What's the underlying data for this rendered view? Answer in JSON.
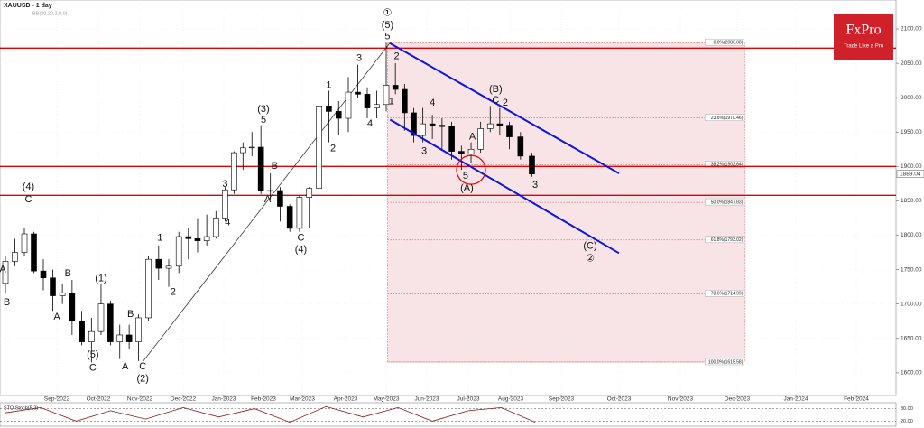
{
  "chart_data": {
    "type": "candlestick",
    "title": "XAUUSD - 1 day",
    "indicator": "BB(20,20,2,0,0)",
    "logo": {
      "brand": "FxPro",
      "tagline": "Trade Like a Pro"
    },
    "x": [
      "2022-07-25",
      "2022-08-01",
      "2022-08-08",
      "2022-08-15",
      "2022-08-22",
      "2022-08-29",
      "2022-09-05",
      "2022-09-12",
      "2022-09-19",
      "2022-09-26",
      "2022-10-03",
      "2022-10-10",
      "2022-10-17",
      "2022-10-24",
      "2022-10-31",
      "2022-11-07",
      "2022-11-14",
      "2022-11-21",
      "2022-11-28",
      "2022-12-05",
      "2022-12-12",
      "2022-12-19",
      "2022-12-26",
      "2023-01-02",
      "2023-01-09",
      "2023-01-16",
      "2023-01-23",
      "2023-01-30",
      "2023-02-06",
      "2023-02-13",
      "2023-02-20",
      "2023-02-27",
      "2023-03-06",
      "2023-03-13",
      "2023-03-20",
      "2023-03-27",
      "2023-04-03",
      "2023-04-10",
      "2023-04-17",
      "2023-04-24",
      "2023-05-01",
      "2023-05-08",
      "2023-05-15",
      "2023-05-22",
      "2023-05-29",
      "2023-06-05",
      "2023-06-12",
      "2023-06-19",
      "2023-06-26",
      "2023-07-03",
      "2023-07-10",
      "2023-07-17",
      "2023-07-24",
      "2023-07-31",
      "2023-08-07",
      "2023-08-14"
    ],
    "open": [
      1730,
      1762,
      1775,
      1802,
      1748,
      1738,
      1712,
      1716,
      1675,
      1645,
      1660,
      1700,
      1645,
      1655,
      1645,
      1680,
      1765,
      1752,
      1755,
      1798,
      1795,
      1792,
      1798,
      1825,
      1866,
      1920,
      1927,
      1928,
      1865,
      1865,
      1842,
      1810,
      1855,
      1868,
      1988,
      1980,
      1970,
      2008,
      2005,
      1985,
      1990,
      2018,
      2012,
      1978,
      1945,
      1962,
      1960,
      1958,
      1922,
      1918,
      1925,
      1955,
      1962,
      1960,
      1943,
      1915
    ],
    "high": [
      1770,
      1795,
      1810,
      1805,
      1765,
      1750,
      1730,
      1735,
      1690,
      1680,
      1730,
      1705,
      1670,
      1670,
      1685,
      1770,
      1785,
      1765,
      1805,
      1810,
      1825,
      1830,
      1835,
      1870,
      1922,
      1935,
      1950,
      1960,
      1890,
      1870,
      1845,
      1858,
      1870,
      1990,
      2010,
      1995,
      2030,
      2048,
      2015,
      2010,
      2080,
      2050,
      2020,
      1985,
      1985,
      1975,
      1970,
      1965,
      1930,
      1935,
      1965,
      1988,
      1985,
      1965,
      1950,
      1920
    ],
    "low": [
      1715,
      1755,
      1770,
      1745,
      1720,
      1690,
      1700,
      1655,
      1640,
      1615,
      1655,
      1640,
      1620,
      1635,
      1617,
      1675,
      1735,
      1725,
      1745,
      1765,
      1775,
      1785,
      1795,
      1820,
      1860,
      1895,
      1915,
      1860,
      1852,
      1820,
      1805,
      1805,
      1810,
      1865,
      1935,
      1945,
      1950,
      2000,
      1970,
      1970,
      1980,
      2005,
      1952,
      1935,
      1935,
      1940,
      1925,
      1910,
      1895,
      1905,
      1920,
      1950,
      1945,
      1925,
      1910,
      1885
    ],
    "close": [
      1762,
      1775,
      1802,
      1748,
      1738,
      1712,
      1716,
      1675,
      1645,
      1660,
      1700,
      1645,
      1655,
      1645,
      1680,
      1765,
      1752,
      1755,
      1798,
      1795,
      1792,
      1798,
      1825,
      1866,
      1920,
      1927,
      1928,
      1865,
      1865,
      1842,
      1810,
      1855,
      1868,
      1988,
      1980,
      1970,
      2008,
      2005,
      1985,
      1990,
      2018,
      2012,
      1978,
      1945,
      1962,
      1960,
      1958,
      1922,
      1918,
      1925,
      1955,
      1962,
      1960,
      1943,
      1915,
      1889
    ],
    "up_color": "#ffffff",
    "down_color": "#000000",
    "ylim": [
      1567,
      2142
    ],
    "yticks": [
      {
        "value": 1600,
        "label": "1600.00"
      },
      {
        "value": 1650,
        "label": "1650.00"
      },
      {
        "value": 1700,
        "label": "1700.00"
      },
      {
        "value": 1750,
        "label": "1750.00"
      },
      {
        "value": 1800,
        "label": "1800.00"
      },
      {
        "value": 1850,
        "label": "1850.00"
      },
      {
        "value": 1900,
        "label": "1900.00"
      },
      {
        "value": 1950,
        "label": "1950.00"
      },
      {
        "value": 2000,
        "label": "2000.00"
      },
      {
        "value": 2050,
        "label": "2050.00"
      },
      {
        "value": 2100,
        "label": "2100.00"
      }
    ],
    "xlim": [
      "2022-07-21",
      "2024-02-21"
    ],
    "xticks": [
      {
        "value": "2022-09-01",
        "label": "Sep-2022"
      },
      {
        "value": "2022-10-01",
        "label": "Oct-2022"
      },
      {
        "value": "2022-11-01",
        "label": "Nov-2022"
      },
      {
        "value": "2022-12-01",
        "label": "Dec-2022"
      },
      {
        "value": "2023-01-01",
        "label": "Jan-2023"
      },
      {
        "value": "2023-02-01",
        "label": "Feb-2023"
      },
      {
        "value": "2023-03-01",
        "label": "Mar-2023"
      },
      {
        "value": "2023-04-01",
        "label": "Apr-2023"
      },
      {
        "value": "2023-05-01",
        "label": "May-2023"
      },
      {
        "value": "2023-06-01",
        "label": "Jun-2023"
      },
      {
        "value": "2023-07-01",
        "label": "Jul-2023"
      },
      {
        "value": "2023-08-01",
        "label": "Aug-2023"
      },
      {
        "value": "2023-09-01",
        "label": "Sep-2023"
      },
      {
        "value": "2023-10-01",
        "label": "Oct-2023"
      },
      {
        "value": "2023-11-01",
        "label": "Nov-2023"
      },
      {
        "value": "2023-12-01",
        "label": "Dec-2023"
      },
      {
        "value": "2024-01-01",
        "label": "Jan-2024"
      },
      {
        "value": "2024-02-01",
        "label": "Feb-2024"
      }
    ],
    "grid": true,
    "last_price": 1889.04,
    "levels": {
      "color": "#e00000",
      "values": [
        2072,
        1900,
        1858
      ]
    },
    "fibonacci": {
      "x": [
        "2023-05-02",
        "2023-12-05"
      ],
      "color": "#f8e4e6",
      "line_color": "#d04040",
      "levels": [
        {
          "value": 2080.08,
          "label": "0.0%(2080.08)"
        },
        {
          "value": 1970.46,
          "label": "23.6%(1970.46)"
        },
        {
          "value": 1902.64,
          "label": "38.2%(1902.64)"
        },
        {
          "value": 1847.83,
          "label": "50.0%(1847.83)"
        },
        {
          "value": 1793.02,
          "label": "61.8%(1793.02)"
        },
        {
          "value": 1714.99,
          "label": "78.6%(1714.99)"
        },
        {
          "value": 1615.58,
          "label": "100.0%(1615.58)"
        }
      ]
    },
    "channel": {
      "color": "#0a14e6",
      "lines": [
        {
          "x": [
            "2023-05-04",
            "2023-10-01"
          ],
          "y": [
            2079,
            1890
          ]
        },
        {
          "x": [
            "2023-05-04",
            "2023-10-01"
          ],
          "y": [
            1968,
            1774
          ]
        }
      ]
    },
    "trendline": {
      "x": [
        "2022-11-03",
        "2023-05-04"
      ],
      "y": [
        1616,
        2080
      ]
    },
    "highlight": {
      "x": "2023-07-03",
      "y": 1895
    },
    "annotations": [
      {
        "text": "(4)",
        "x": "2022-08-11",
        "y": 1870
      },
      {
        "text": "C",
        "x": "2022-08-11",
        "y": 1852
      },
      {
        "text": "A",
        "x": "2022-07-23",
        "y": 1750
      },
      {
        "text": "B",
        "x": "2022-07-26",
        "y": 1702
      },
      {
        "text": "B",
        "x": "2022-09-09",
        "y": 1744
      },
      {
        "text": "A",
        "x": "2022-09-01",
        "y": 1681
      },
      {
        "text": "(1)",
        "x": "2022-10-03",
        "y": 1737
      },
      {
        "text": "(5)",
        "x": "2022-09-27",
        "y": 1626
      },
      {
        "text": "C",
        "x": "2022-09-27",
        "y": 1607
      },
      {
        "text": "A",
        "x": "2022-10-21",
        "y": 1609
      },
      {
        "text": "B",
        "x": "2022-10-25",
        "y": 1685
      },
      {
        "text": "C",
        "x": "2022-11-03",
        "y": 1609
      },
      {
        "text": "(2)",
        "x": "2022-11-03",
        "y": 1591
      },
      {
        "text": "1",
        "x": "2022-11-15",
        "y": 1796
      },
      {
        "text": "2",
        "x": "2022-11-24",
        "y": 1717
      },
      {
        "text": "3",
        "x": "2023-01-02",
        "y": 1874
      },
      {
        "text": "4",
        "x": "2023-01-04",
        "y": 1818
      },
      {
        "text": "(3)",
        "x": "2023-02-01",
        "y": 1983
      },
      {
        "text": "5",
        "x": "2023-02-01",
        "y": 1967
      },
      {
        "text": "B",
        "x": "2023-02-09",
        "y": 1900
      },
      {
        "text": "A",
        "x": "2023-02-04",
        "y": 1852
      },
      {
        "text": "C",
        "x": "2023-02-28",
        "y": 1796
      },
      {
        "text": "(4)",
        "x": "2023-02-28",
        "y": 1779
      },
      {
        "text": "1",
        "x": "2023-03-20",
        "y": 2018
      },
      {
        "text": "2",
        "x": "2023-03-23",
        "y": 1926
      },
      {
        "text": "3",
        "x": "2023-04-11",
        "y": 2057
      },
      {
        "text": "4",
        "x": "2023-04-19",
        "y": 1962
      },
      {
        "text": "①",
        "x": "2023-05-02",
        "y": 2123
      },
      {
        "text": "(5)",
        "x": "2023-05-02",
        "y": 2105
      },
      {
        "text": "5",
        "x": "2023-05-02",
        "y": 2089
      },
      {
        "text": "2",
        "x": "2023-05-09",
        "y": 2060
      },
      {
        "text": "1",
        "x": "2023-05-05",
        "y": 1994
      },
      {
        "text": "3",
        "x": "2023-05-30",
        "y": 1922
      },
      {
        "text": "4",
        "x": "2023-06-05",
        "y": 1992
      },
      {
        "text": "A",
        "x": "2023-07-04",
        "y": 1943
      },
      {
        "text": "5",
        "x": "2023-06-29",
        "y": 1886
      },
      {
        "text": "(A)",
        "x": "2023-06-30",
        "y": 1868
      },
      {
        "text": "(B)",
        "x": "2023-07-21",
        "y": 2012
      },
      {
        "text": "C",
        "x": "2023-07-21",
        "y": 1996
      },
      {
        "text": "2",
        "x": "2023-07-28",
        "y": 1992
      },
      {
        "text": "3",
        "x": "2023-08-16",
        "y": 1873
      },
      {
        "text": "(C)",
        "x": "2023-09-16",
        "y": 1784
      },
      {
        "text": "②",
        "x": "2023-09-16",
        "y": 1766
      }
    ],
    "stochastic": {
      "title": "STO Stoch(5,3)",
      "ylim": [
        0,
        100
      ],
      "yticks": [
        {
          "value": 80,
          "label": "80.00"
        },
        {
          "value": 20,
          "label": "20.00"
        }
      ],
      "x": [
        "2022-07-25",
        "2022-08-20",
        "2022-09-15",
        "2022-10-10",
        "2022-11-05",
        "2022-12-01",
        "2022-12-28",
        "2023-01-25",
        "2023-02-20",
        "2023-03-18",
        "2023-04-14",
        "2023-05-10",
        "2023-06-05",
        "2023-07-01",
        "2023-07-25",
        "2023-08-16"
      ],
      "values": [
        60,
        85,
        20,
        70,
        30,
        85,
        40,
        80,
        15,
        90,
        40,
        85,
        20,
        70,
        85,
        15
      ]
    }
  }
}
